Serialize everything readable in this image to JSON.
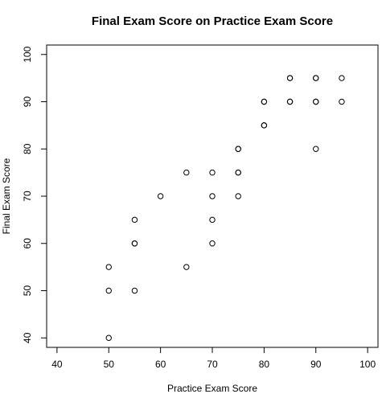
{
  "chart_data": {
    "type": "scatter",
    "title": "Final Exam Score on Practice Exam Score",
    "xlabel": "Practice Exam Score",
    "ylabel": "Final Exam Score",
    "xlim": [
      38,
      102
    ],
    "ylim": [
      38,
      102
    ],
    "x_ticks": [
      40,
      50,
      60,
      70,
      80,
      90,
      100
    ],
    "y_ticks": [
      40,
      50,
      60,
      70,
      80,
      90,
      100
    ],
    "x_tick_labels": [
      "40",
      "50",
      "60",
      "70",
      "80",
      "90",
      "100"
    ],
    "y_tick_labels": [
      "40",
      "50",
      "60",
      "70",
      "80",
      "90",
      "100"
    ],
    "grid": false,
    "marker": "open-circle",
    "points": [
      {
        "x": 50,
        "y": 40
      },
      {
        "x": 50,
        "y": 50
      },
      {
        "x": 50,
        "y": 55
      },
      {
        "x": 55,
        "y": 50
      },
      {
        "x": 55,
        "y": 60
      },
      {
        "x": 55,
        "y": 60
      },
      {
        "x": 55,
        "y": 65
      },
      {
        "x": 60,
        "y": 70
      },
      {
        "x": 65,
        "y": 55
      },
      {
        "x": 65,
        "y": 75
      },
      {
        "x": 70,
        "y": 60
      },
      {
        "x": 70,
        "y": 65
      },
      {
        "x": 70,
        "y": 70
      },
      {
        "x": 70,
        "y": 75
      },
      {
        "x": 75,
        "y": 70
      },
      {
        "x": 75,
        "y": 75
      },
      {
        "x": 75,
        "y": 75
      },
      {
        "x": 75,
        "y": 80
      },
      {
        "x": 75,
        "y": 80
      },
      {
        "x": 80,
        "y": 85
      },
      {
        "x": 80,
        "y": 85
      },
      {
        "x": 80,
        "y": 90
      },
      {
        "x": 80,
        "y": 90
      },
      {
        "x": 85,
        "y": 90
      },
      {
        "x": 85,
        "y": 90
      },
      {
        "x": 85,
        "y": 95
      },
      {
        "x": 85,
        "y": 95
      },
      {
        "x": 90,
        "y": 80
      },
      {
        "x": 90,
        "y": 90
      },
      {
        "x": 90,
        "y": 90
      },
      {
        "x": 90,
        "y": 95
      },
      {
        "x": 90,
        "y": 95
      },
      {
        "x": 95,
        "y": 90
      },
      {
        "x": 95,
        "y": 95
      }
    ]
  }
}
